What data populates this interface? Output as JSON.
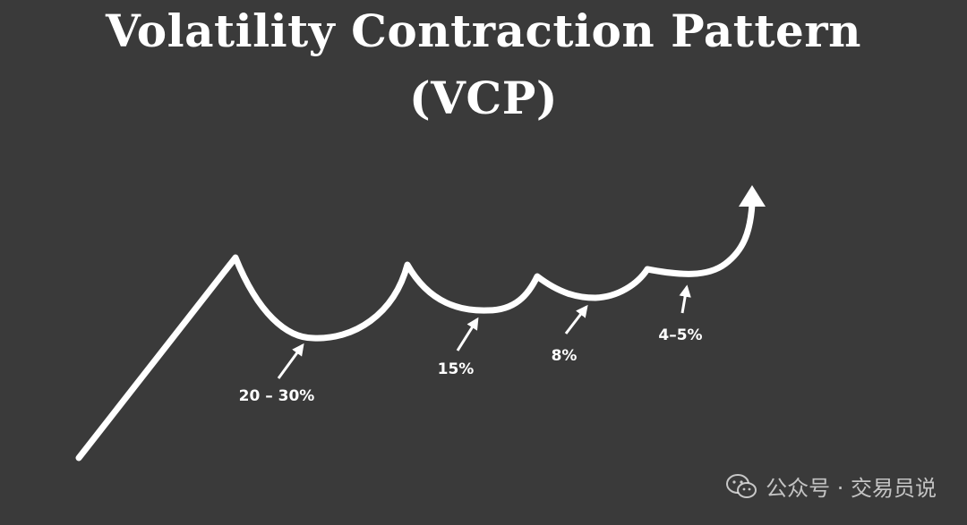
{
  "title": {
    "line1": "Volatility Contraction Pattern",
    "line2": "(VCP)"
  },
  "contractions": [
    {
      "label": "20 – 30%"
    },
    {
      "label": "15%"
    },
    {
      "label": "8%"
    },
    {
      "label": "4–5%"
    }
  ],
  "watermark": {
    "icon": "wechat-icon",
    "text": "公众号 · 交易员说"
  },
  "colors": {
    "background": "#3a3a3a",
    "stroke": "#ffffff"
  }
}
